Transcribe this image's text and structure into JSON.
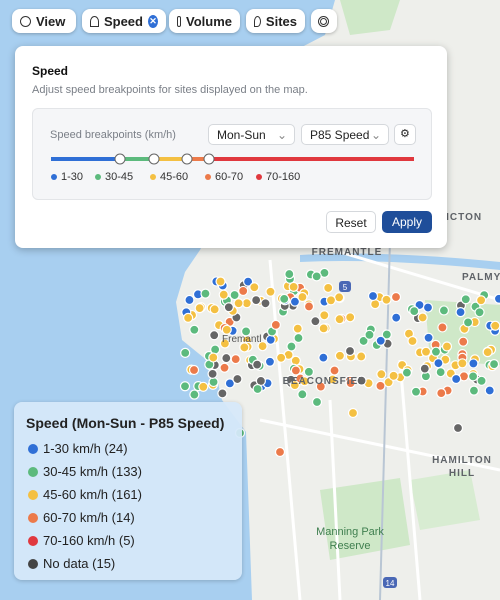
{
  "toolbar": {
    "buttons": [
      "View",
      "Speed",
      "Volume",
      "Sites"
    ]
  },
  "panel": {
    "title": "Speed",
    "description": "Adjust speed breakpoints for sites displayed on the map.",
    "breakpoints_label": "Speed breakpoints (km/h)",
    "day_select": "Mon-Sun",
    "metric_select": "P85 Speed",
    "ranges": [
      "1-30",
      "30-45",
      "45-60",
      "60-70",
      "70-160"
    ],
    "reset": "Reset",
    "apply": "Apply"
  },
  "legend": {
    "title": "Speed (Mon-Sun - P85 Speed)",
    "items": [
      "1-30 km/h (24)",
      "30-45 km/h (133)",
      "45-60 km/h (161)",
      "60-70 km/h (14)",
      "70-160 km/h (5)",
      "No data (15)"
    ]
  },
  "map": {
    "labels": [
      "BICTON",
      "FREMANTLE",
      "PALMY",
      "Fremantl",
      "BEACONSFIEL",
      "HAMILTON",
      "HILL",
      "Manning Park",
      "Reserve"
    ],
    "shields": [
      "5",
      "14"
    ]
  }
}
